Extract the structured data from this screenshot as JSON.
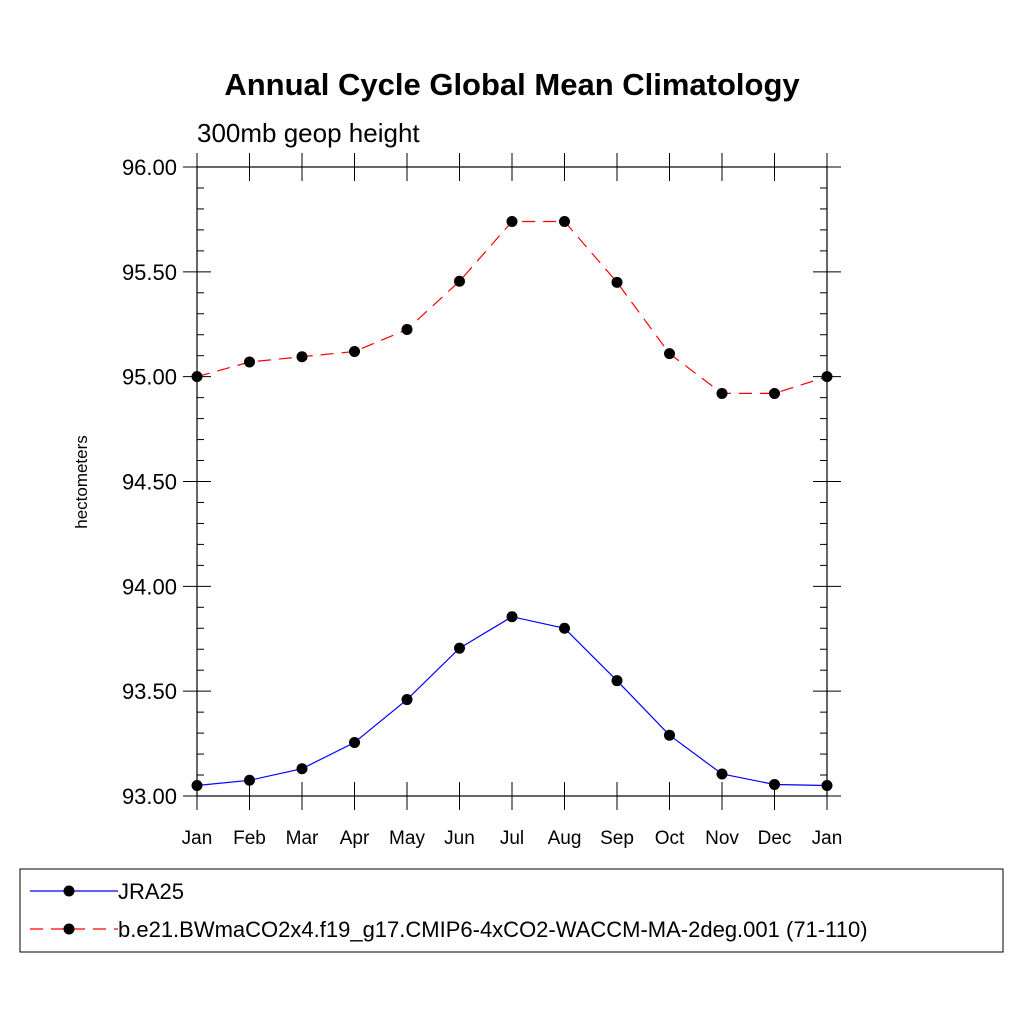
{
  "chart_data": {
    "type": "line",
    "title": "Annual Cycle Global Mean Climatology",
    "subtitle": "300mb geop height",
    "xlabel": "",
    "ylabel": "hectometers",
    "categories": [
      "Jan",
      "Feb",
      "Mar",
      "Apr",
      "May",
      "Jun",
      "Jul",
      "Aug",
      "Sep",
      "Oct",
      "Nov",
      "Dec",
      "Jan"
    ],
    "ylim": [
      93.0,
      96.0
    ],
    "yticks": [
      "93.00",
      "93.50",
      "94.00",
      "94.50",
      "95.00",
      "95.50",
      "96.00"
    ],
    "grid": false,
    "legend_position": "bottom",
    "series": [
      {
        "name": "JRA25",
        "color": "#0000ff",
        "line_style": "solid",
        "marker": "filled-circle",
        "values": [
          93.05,
          93.075,
          93.13,
          93.255,
          93.46,
          93.705,
          93.855,
          93.8,
          93.55,
          93.29,
          93.105,
          93.055,
          93.05
        ]
      },
      {
        "name": "b.e21.BWmaCO2x4.f19_g17.CMIP6-4xCO2-WACCM-MA-2deg.001 (71-110)",
        "color": "#ff0000",
        "line_style": "dashed",
        "marker": "filled-circle",
        "values": [
          95.0,
          95.07,
          95.095,
          95.12,
          95.225,
          95.455,
          95.74,
          95.74,
          95.45,
          95.11,
          94.92,
          94.92,
          95.0
        ]
      }
    ]
  }
}
